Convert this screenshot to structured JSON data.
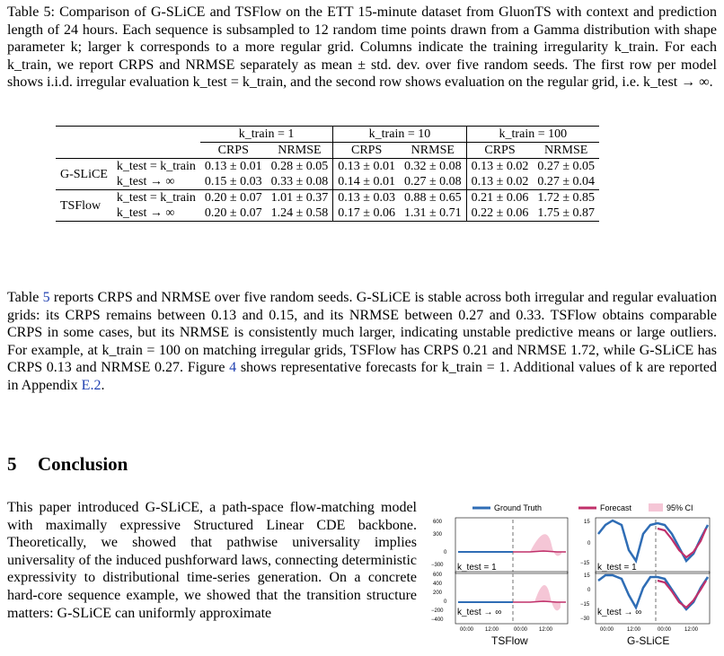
{
  "caption": "Table 5: Comparison of G-SLiCE and TSFlow on the ETT 15-minute dataset from GluonTS with context and prediction length of 24 hours. Each sequence is subsampled to 12 random time points drawn from a Gamma distribution with shape parameter k; larger k corresponds to a more regular grid. Columns indicate the training irregularity k_train. For each k_train, we report CRPS and NRMSE separately as mean ± std. dev. over five random seeds. The first row per model shows i.i.d. irregular evaluation k_test = k_train, and the second row shows evaluation on the regular grid, i.e. k_test → ∞.",
  "table": {
    "groups": [
      "k_train = 1",
      "k_train = 10",
      "k_train = 100"
    ],
    "metrics": [
      "CRPS",
      "NRMSE"
    ],
    "rows": [
      {
        "model": "G-SLiCE",
        "cond": [
          "k_test = k_train",
          "k_test → ∞"
        ],
        "values": [
          [
            "0.13 ± 0.01",
            "0.28 ± 0.05",
            "0.13 ± 0.01",
            "0.32 ± 0.08",
            "0.13 ± 0.02",
            "0.27 ± 0.05"
          ],
          [
            "0.15 ± 0.03",
            "0.33 ± 0.08",
            "0.14 ± 0.01",
            "0.27 ± 0.08",
            "0.13 ± 0.02",
            "0.27 ± 0.04"
          ]
        ]
      },
      {
        "model": "TSFlow",
        "cond": [
          "k_test = k_train",
          "k_test → ∞"
        ],
        "values": [
          [
            "0.20 ± 0.07",
            "1.01 ± 0.37",
            "0.13 ± 0.03",
            "0.88 ± 0.65",
            "0.21 ± 0.06",
            "1.72 ± 0.85"
          ],
          [
            "0.20 ± 0.07",
            "1.24 ± 0.58",
            "0.17 ± 0.06",
            "1.31 ± 0.71",
            "0.22 ± 0.06",
            "1.75 ± 0.87"
          ]
        ]
      }
    ]
  },
  "body": {
    "p1_a": "Table ",
    "p1_ref1": "5",
    "p1_b": " reports CRPS and NRMSE over five random seeds. G-SLiCE is stable across both irregular and regular evaluation grids: its CRPS remains between 0.13 and 0.15, and its NRMSE between 0.27 and 0.33. TSFlow obtains comparable CRPS in some cases, but its NRMSE is consistently much larger, indicating unstable predictive means or large outliers. For example, at k_train = 100 on matching irregular grids, TSFlow has CRPS 0.21 and NRMSE 1.72, while G-SLiCE has CRPS 0.13 and NRMSE 0.27. Figure ",
    "p1_ref2": "4",
    "p1_c": " shows representative forecasts for k_train = 1. Additional values of k are reported in Appendix ",
    "p1_ref3": "E.2",
    "p1_d": "."
  },
  "section": {
    "number": "5",
    "title": "Conclusion"
  },
  "intro": "This paper introduced G-SLiCE, a path-space flow-matching model with maximally expressive Structured Linear CDE backbone. Theoretically, we showed that pathwise universality implies universality of the induced pushforward laws, connecting deterministic expressivity to distributional time-series generation. On a concrete hard-core sequence example, we showed that the transition structure matters: G-SLiCE can uniformly approximate",
  "figure": {
    "legend": [
      "Ground Truth",
      "Forecast",
      "95% CI"
    ],
    "panel_labels": [
      "k_test = 1",
      "k_test = 1",
      "k_test → ∞",
      "k_test → ∞"
    ],
    "column_titles": [
      "TSFlow",
      "G-SLiCE"
    ],
    "yticks_left": [
      "600",
      "300",
      "0",
      "−300"
    ],
    "yticks_left_bottom": [
      "600",
      "400",
      "200",
      "0",
      "−200",
      "−400"
    ],
    "yticks_right": [
      "15",
      "0",
      "−15"
    ],
    "yticks_right_bottom": [
      "15",
      "0",
      "−15",
      "−30"
    ],
    "xticks": [
      "00:00",
      "12:00",
      "00:00",
      "12:00"
    ],
    "colors": {
      "truth": "#2f6db5",
      "forecast": "#c0306a",
      "ci": "#f5c6d6",
      "divider": "#9a9a9a"
    }
  }
}
